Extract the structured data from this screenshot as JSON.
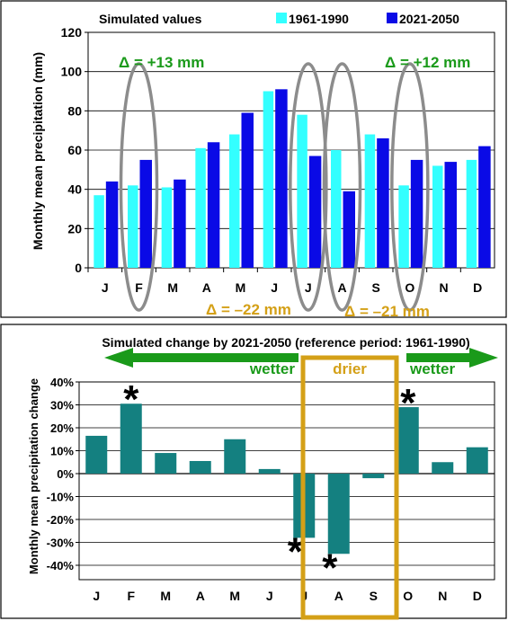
{
  "colors": {
    "ref": "#33ffff",
    "fut": "#0a0ae6",
    "change": "#148080",
    "green": "#1a9a1a",
    "gold": "#d4a017",
    "ellipse": "#8c8c8c"
  },
  "chart_data": [
    {
      "type": "bar",
      "title": "Simulated values",
      "ylabel": "Monthly mean precipitation (mm)",
      "categories": [
        "J",
        "F",
        "M",
        "A",
        "M",
        "J",
        "J",
        "A",
        "S",
        "O",
        "N",
        "D"
      ],
      "ylim": [
        0,
        120
      ],
      "yticks": [
        "0",
        "20",
        "40",
        "60",
        "80",
        "100",
        "120"
      ],
      "grid": true,
      "legend": "top-right",
      "series": [
        {
          "name": "1961-1990",
          "values": [
            37,
            42,
            41,
            61,
            68,
            90,
            78,
            60,
            68,
            42,
            52,
            55
          ]
        },
        {
          "name": "2021-2050",
          "values": [
            44,
            55,
            45,
            64,
            79,
            91,
            57,
            39,
            66,
            55,
            54,
            62
          ]
        }
      ],
      "annotations": [
        {
          "text": "Δ = +13 mm",
          "month": "F"
        },
        {
          "text": "Δ = +12 mm",
          "month": "O"
        },
        {
          "text": "Δ = –22 mm",
          "month": "J"
        },
        {
          "text": "Δ = –21 mm",
          "month": "A"
        }
      ]
    },
    {
      "type": "bar",
      "title": "Simulated change by 2021-2050 (reference period: 1961-1990)",
      "ylabel": "Monthly mean precipitation change",
      "categories": [
        "J",
        "F",
        "M",
        "A",
        "M",
        "J",
        "J",
        "A",
        "S",
        "O",
        "N",
        "D"
      ],
      "ylim": [
        -40,
        40
      ],
      "yticks": [
        "-40%",
        "-30%",
        "-20%",
        "-10%",
        "0%",
        "10%",
        "20%",
        "30%",
        "40%"
      ],
      "grid": true,
      "values": [
        16.5,
        30.5,
        9,
        5.5,
        15,
        2,
        -28,
        -35,
        -2,
        29,
        5,
        11.5
      ],
      "significant": [
        false,
        true,
        false,
        false,
        false,
        false,
        true,
        true,
        false,
        true,
        false,
        false
      ],
      "labels": {
        "wetter": "wetter",
        "drier": "drier",
        "star": "*"
      }
    }
  ]
}
